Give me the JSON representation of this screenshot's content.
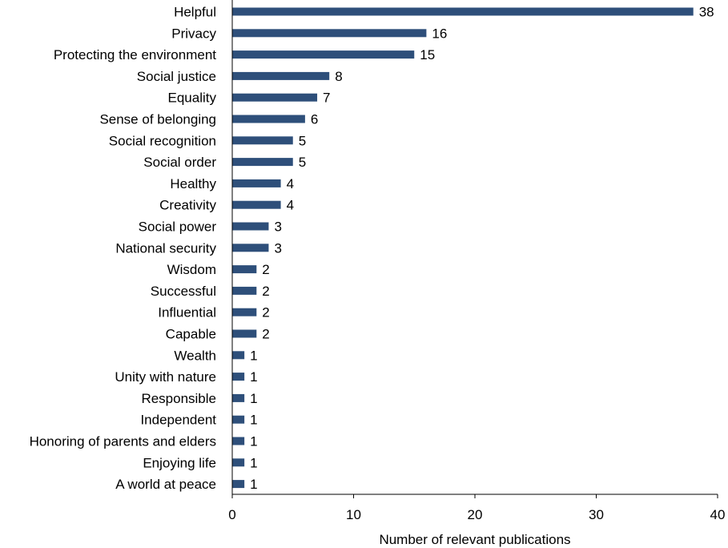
{
  "chart_data": {
    "type": "bar",
    "orientation": "horizontal",
    "categories": [
      "Helpful",
      "Privacy",
      "Protecting the environment",
      "Social justice",
      "Equality",
      "Sense of belonging",
      "Social recognition",
      "Social order",
      "Healthy",
      "Creativity",
      "Social power",
      "National security",
      "Wisdom",
      "Successful",
      "Influential",
      "Capable",
      "Wealth",
      "Unity with nature",
      "Responsible",
      "Independent",
      "Honoring of parents and elders",
      "Enjoying life",
      "A world at peace"
    ],
    "values": [
      38,
      16,
      15,
      8,
      7,
      6,
      5,
      5,
      4,
      4,
      3,
      3,
      2,
      2,
      2,
      2,
      1,
      1,
      1,
      1,
      1,
      1,
      1
    ],
    "title": "",
    "xlabel": "Number of relevant publications",
    "ylabel": "",
    "xlim": [
      0,
      40
    ],
    "xticks": [
      0,
      10,
      20,
      30,
      40
    ],
    "grid": false,
    "data_labels": true,
    "bar_color": "#2e4f7a"
  }
}
